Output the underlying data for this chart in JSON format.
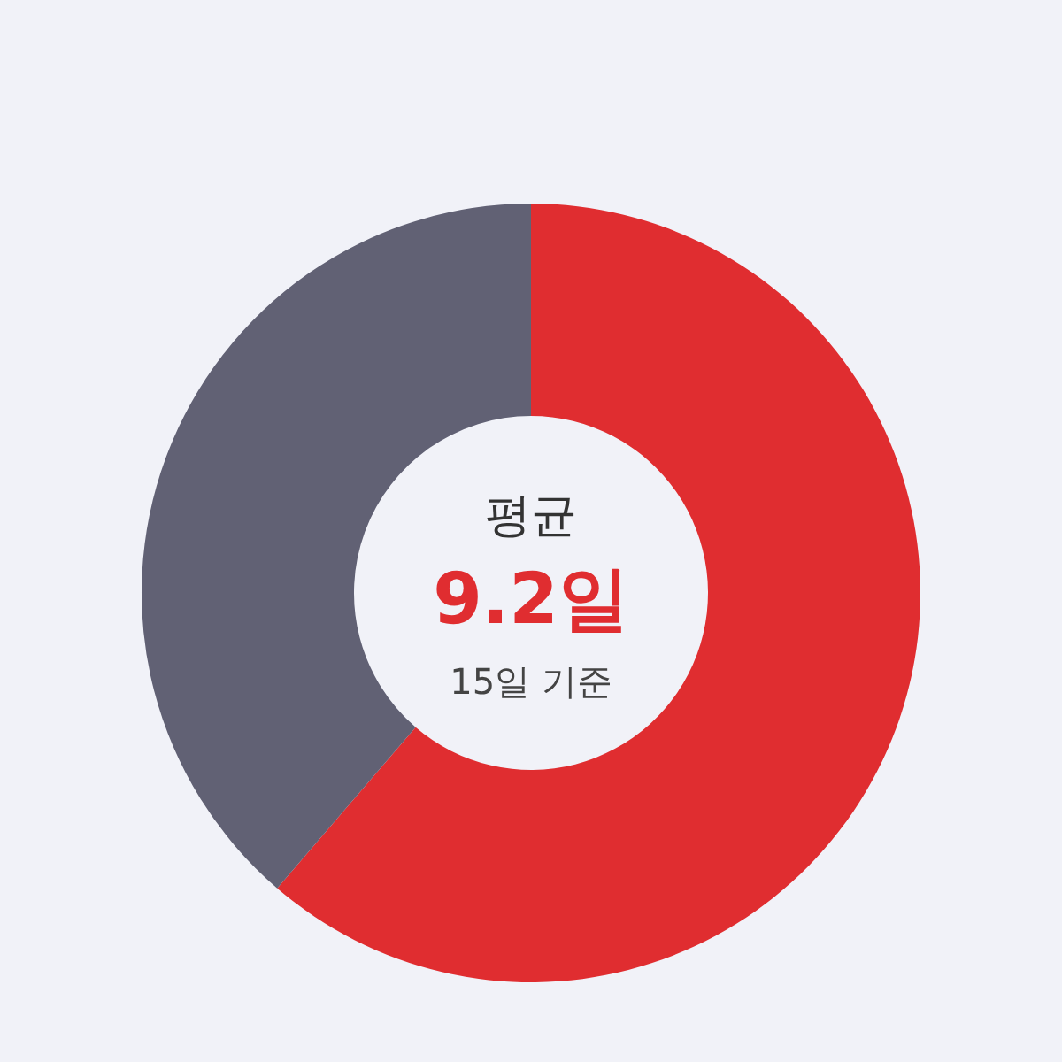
{
  "chart_data": {
    "type": "donut",
    "categories": [
      null,
      null
    ],
    "values": [
      61.3,
      38.7
    ],
    "colors": [
      "#e02d30",
      "#616174"
    ],
    "annotations": [
      "평균",
      "9.2일",
      "15일 기준"
    ]
  }
}
